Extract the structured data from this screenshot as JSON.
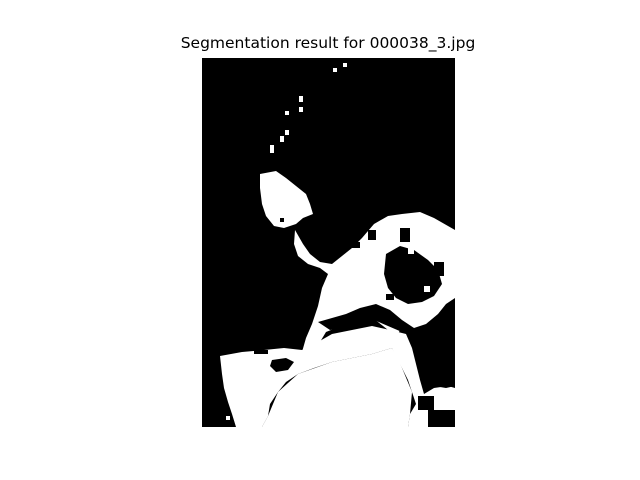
{
  "figure": {
    "title": "Segmentation result for 000038_3.jpg"
  },
  "mask": {
    "background_color": "#000000",
    "foreground_color": "#ffffff",
    "description": "binary segmentation mask"
  }
}
